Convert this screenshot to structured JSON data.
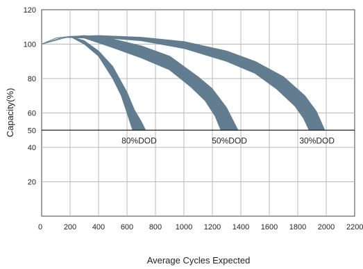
{
  "chart_data": {
    "type": "area",
    "title": "",
    "xlabel": "Average Cycles Expected",
    "ylabel": "Capacity(%)",
    "xlim": [
      0,
      2200
    ],
    "ylim": [
      0,
      120
    ],
    "x_ticks": [
      0,
      200,
      400,
      600,
      800,
      1000,
      1200,
      1400,
      1600,
      1800,
      2000,
      2200
    ],
    "x_tick_labels": [
      "0",
      "200",
      "400",
      "600",
      "800",
      "1000",
      "1200",
      "1400",
      "1600",
      "1800",
      "2000",
      "2200"
    ],
    "y_ticks": [
      20,
      40,
      50,
      60,
      80,
      100,
      120
    ],
    "y_tick_labels": [
      "20",
      "40",
      "50",
      "60",
      "80",
      "100",
      "120"
    ],
    "grid": true,
    "reference_line": 50,
    "band_color": "#627d8f",
    "series": [
      {
        "name": "80%DOD",
        "upper": {
          "x": [
            0,
            100,
            200,
            300,
            400,
            500,
            600,
            650,
            700,
            730
          ],
          "y": [
            100,
            103.5,
            104.5,
            102,
            96,
            87,
            72,
            62,
            55,
            50
          ]
        },
        "lower": {
          "x": [
            0,
            100,
            200,
            300,
            400,
            500,
            560,
            600,
            640
          ],
          "y": [
            100,
            103.5,
            104.5,
            100,
            93,
            80,
            70,
            60,
            50
          ]
        }
      },
      {
        "name": "50%DOD",
        "upper": {
          "x": [
            0,
            150,
            300,
            500,
            700,
            900,
            1100,
            1200,
            1300,
            1380
          ],
          "y": [
            100,
            104,
            105,
            103,
            99,
            93,
            81,
            74,
            63,
            50
          ]
        },
        "lower": {
          "x": [
            0,
            150,
            300,
            500,
            700,
            900,
            1050,
            1150,
            1220,
            1260
          ],
          "y": [
            100,
            104,
            103.5,
            98,
            92,
            85,
            75,
            67,
            58,
            50
          ]
        }
      },
      {
        "name": "30%DOD",
        "upper": {
          "x": [
            0,
            200,
            400,
            700,
            1000,
            1300,
            1500,
            1700,
            1850,
            1930,
            1990
          ],
          "y": [
            100,
            104.5,
            105,
            104,
            101.5,
            96,
            90,
            81,
            70,
            61,
            50
          ]
        },
        "lower": {
          "x": [
            0,
            200,
            400,
            700,
            1000,
            1300,
            1500,
            1650,
            1780,
            1840,
            1880
          ],
          "y": [
            100,
            104.5,
            104,
            102,
            97.5,
            90,
            83,
            74,
            64,
            57,
            50
          ]
        }
      }
    ]
  }
}
